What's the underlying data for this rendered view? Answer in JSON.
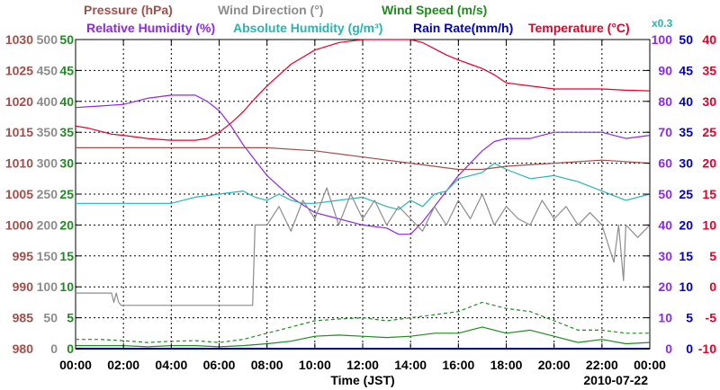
{
  "chart_data": {
    "type": "line",
    "date_label": "2010-07-22",
    "xlabel": "Time (JST)",
    "x_ticks": [
      "00:00",
      "02:00",
      "04:00",
      "06:00",
      "08:00",
      "10:00",
      "12:00",
      "14:00",
      "16:00",
      "18:00",
      "20:00",
      "22:00",
      "00:00"
    ],
    "header_row1": [
      {
        "text": "Pressure (hPa)",
        "color": "#a0504b"
      },
      {
        "text": "Wind Direction (°)",
        "color": "#8c8c8c"
      },
      {
        "text": "Wind Speed (m/s)",
        "color": "#1e8c1e"
      }
    ],
    "header_row2": [
      {
        "text": "Relative Humidity (%)",
        "color": "#8c28e6"
      },
      {
        "text": "Absolute Humidity (g/m³)",
        "color": "#28b4b4"
      },
      {
        "text": "Rain Rate(mm/h)",
        "color": "#0000c8"
      },
      {
        "text": "Temperature (°C)",
        "color": "#e60028"
      }
    ],
    "rain_scale_note": "x0.3",
    "axes": {
      "pressure": {
        "color": "#a0504b",
        "ticks": [
          "1030",
          "1025",
          "1020",
          "1015",
          "1010",
          "1005",
          "1000",
          "995",
          "990",
          "985",
          "980"
        ],
        "range": [
          980,
          1030
        ]
      },
      "wind_direction": {
        "color": "#8c8c8c",
        "ticks": [
          "500",
          "450",
          "400",
          "350",
          "300",
          "250",
          "200",
          "150",
          "100",
          "50",
          "0"
        ],
        "range": [
          0,
          500
        ]
      },
      "wind_speed": {
        "color": "#1e8c1e",
        "ticks": [
          "50",
          "45",
          "40",
          "35",
          "30",
          "25",
          "20",
          "15",
          "10",
          "5",
          "0"
        ],
        "range": [
          0,
          50
        ]
      },
      "relative_humidity": {
        "color": "#8c28e6",
        "ticks": [
          "100",
          "90",
          "80",
          "70",
          "60",
          "50",
          "40",
          "30",
          "20",
          "10",
          "0"
        ],
        "range": [
          0,
          100
        ]
      },
      "rain_rate": {
        "color": "#0000c8",
        "ticks": [
          "50",
          "45",
          "40",
          "35",
          "30",
          "25",
          "20",
          "15",
          "10",
          "5",
          "0"
        ],
        "range": [
          0,
          50
        ]
      },
      "temperature": {
        "color": "#e60028",
        "ticks": [
          "40",
          "35",
          "30",
          "25",
          "20",
          "15",
          "10",
          "5",
          "0",
          "-5",
          "-10"
        ],
        "range": [
          -10,
          40
        ]
      }
    },
    "series": [
      {
        "name": "Temperature",
        "unit": "°C",
        "color": "#e60028",
        "x": [
          0,
          0.5,
          1,
          1.5,
          2,
          3,
          4,
          5,
          5.5,
          6,
          6.5,
          7,
          7.5,
          8,
          9,
          10,
          11,
          12,
          13,
          14,
          14.5,
          15,
          15.5,
          16,
          16.5,
          17,
          17.5,
          18,
          19,
          20,
          21,
          22,
          23,
          24
        ],
        "y": [
          26.0,
          25.7,
          25.2,
          24.7,
          24.5,
          24.0,
          23.7,
          23.7,
          24.0,
          25.0,
          26.5,
          28.3,
          30.5,
          32.5,
          36.0,
          38.3,
          39.5,
          40.0,
          40.0,
          40.0,
          39.5,
          38.5,
          37.5,
          36.7,
          36.0,
          35.3,
          34.3,
          33.0,
          32.5,
          32.0,
          32.0,
          32.0,
          31.8,
          31.7
        ]
      },
      {
        "name": "Relative Humidity",
        "unit": "%",
        "color": "#8c28e6",
        "x": [
          0,
          1,
          2,
          3,
          4,
          4.5,
          5,
          5.5,
          6,
          6.5,
          7,
          7.5,
          8,
          9,
          10,
          11,
          12,
          13,
          13.5,
          14,
          14.5,
          15,
          15.5,
          16,
          16.5,
          17,
          17.5,
          18,
          19,
          19.5,
          20,
          21,
          22,
          23,
          24
        ],
        "y": [
          78,
          78.5,
          79,
          81,
          82,
          82,
          82,
          80,
          77,
          72,
          66,
          61,
          56,
          49,
          44,
          42,
          40,
          39,
          37,
          37,
          41,
          46,
          51,
          56,
          60,
          64,
          67,
          68,
          68,
          69,
          70,
          70,
          70,
          68,
          69
        ]
      },
      {
        "name": "Absolute Humidity",
        "unit": "g/m³",
        "color": "#28b4b4",
        "x": [
          0,
          1,
          2,
          3,
          4,
          5,
          6,
          7,
          7.5,
          8,
          8.5,
          9,
          9.5,
          10,
          11,
          12,
          13,
          13.5,
          14,
          14.5,
          15,
          15.5,
          16,
          16.5,
          17,
          17.5,
          18,
          19,
          20,
          21,
          22,
          23,
          24
        ],
        "y": [
          23.5,
          23.5,
          23.5,
          23.5,
          23.5,
          24.5,
          25.0,
          25.5,
          24.5,
          24.0,
          25.0,
          24.0,
          23.5,
          23.5,
          24.0,
          24.5,
          23.0,
          22.5,
          24.0,
          23.0,
          25.0,
          25.5,
          27.5,
          28.0,
          28.5,
          30.0,
          29.0,
          27.5,
          28.0,
          27.0,
          25.5,
          24.0,
          25.0
        ]
      },
      {
        "name": "Pressure",
        "unit": "hPa",
        "color": "#a0504b",
        "x": [
          0,
          2,
          4,
          6,
          8,
          10,
          12,
          14,
          16,
          17,
          18,
          20,
          22,
          24
        ],
        "y": [
          1012.5,
          1012.5,
          1012.5,
          1012.5,
          1012.5,
          1012.0,
          1011.0,
          1010.0,
          1009.0,
          1009.0,
          1009.5,
          1010.0,
          1010.5,
          1010.0
        ]
      },
      {
        "name": "Wind Direction",
        "unit": "°",
        "color": "#8c8c8c",
        "x": [
          0,
          1.5,
          1.6,
          1.7,
          1.8,
          1.9,
          2,
          3,
          4,
          5,
          6,
          7,
          7.4,
          7.5,
          8,
          8.5,
          9,
          9.5,
          10,
          10.5,
          11,
          11.5,
          12,
          12.5,
          13,
          13.5,
          14,
          14.5,
          15,
          15.5,
          16,
          16.5,
          17,
          17.5,
          18,
          18.5,
          19,
          19.5,
          20,
          20.5,
          21,
          21.5,
          22,
          22.5,
          22.7,
          22.9,
          23,
          23.5,
          24
        ],
        "y": [
          90,
          90,
          75,
          90,
          75,
          70,
          70,
          70,
          70,
          70,
          70,
          70,
          70,
          200,
          200,
          230,
          190,
          240,
          210,
          260,
          200,
          250,
          210,
          240,
          200,
          230,
          210,
          190,
          230,
          200,
          240,
          210,
          250,
          200,
          230,
          210,
          200,
          240,
          210,
          230,
          200,
          220,
          200,
          140,
          200,
          110,
          200,
          180,
          200
        ]
      },
      {
        "name": "Wind Speed",
        "unit": "m/s",
        "color": "#1e8c1e",
        "x": [
          0,
          1,
          2,
          3,
          4,
          5,
          6,
          7,
          8,
          9,
          10,
          11,
          12,
          13,
          14,
          15,
          16,
          17,
          18,
          19,
          20,
          21,
          22,
          23,
          24
        ],
        "y": [
          0.5,
          0.5,
          0.5,
          0.3,
          0.5,
          0.5,
          0.3,
          0.5,
          0.8,
          1.2,
          2.0,
          2.2,
          2.0,
          1.8,
          2.0,
          2.5,
          2.5,
          3.5,
          2.5,
          3.0,
          2.0,
          1.0,
          1.5,
          0.8,
          1.0
        ]
      },
      {
        "name": "Wind Speed (gust)",
        "unit": "m/s",
        "color": "#1e8c1e",
        "x": [
          0,
          1,
          2,
          3,
          4,
          5,
          6,
          7,
          8,
          9,
          10,
          11,
          12,
          13,
          14,
          15,
          16,
          17,
          18,
          19,
          20,
          21,
          22,
          23,
          24
        ],
        "y": [
          1.5,
          1.5,
          1.3,
          1.0,
          1.2,
          1.3,
          1.0,
          1.5,
          2.5,
          3.5,
          4.5,
          4.8,
          5.0,
          4.5,
          5.0,
          5.5,
          6.0,
          7.5,
          6.5,
          6.0,
          4.5,
          3.0,
          3.0,
          2.5,
          2.5
        ]
      },
      {
        "name": "Rain Rate",
        "unit": "mm/h",
        "color": "#0000c8",
        "x": [
          0,
          24
        ],
        "y": [
          0,
          0
        ]
      }
    ]
  }
}
